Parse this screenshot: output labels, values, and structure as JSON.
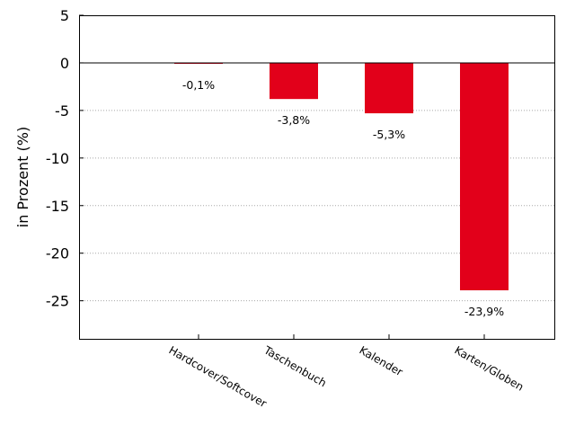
{
  "chart_data": {
    "type": "bar",
    "title": "",
    "xlabel": "",
    "ylabel": "in Prozent (%)",
    "categories": [
      "Hardcover/Softcover",
      "Taschenbuch",
      "Kalender",
      "Karten/Globen"
    ],
    "values": [
      -0.1,
      -3.8,
      -5.3,
      -23.9
    ],
    "data_labels": [
      "-0,1%",
      "-3,8%",
      "-5,3%",
      "-23,9%"
    ],
    "ylim": [
      -29,
      5
    ],
    "yticks": [
      5,
      0,
      -5,
      -10,
      -15,
      -20,
      -25
    ],
    "ytick_labels": [
      "5",
      "0",
      "-5",
      "-10",
      "-15",
      "-20",
      "-25"
    ],
    "grid": "horizontal dotted",
    "legend": "none",
    "bar_color": "#e2001a"
  }
}
